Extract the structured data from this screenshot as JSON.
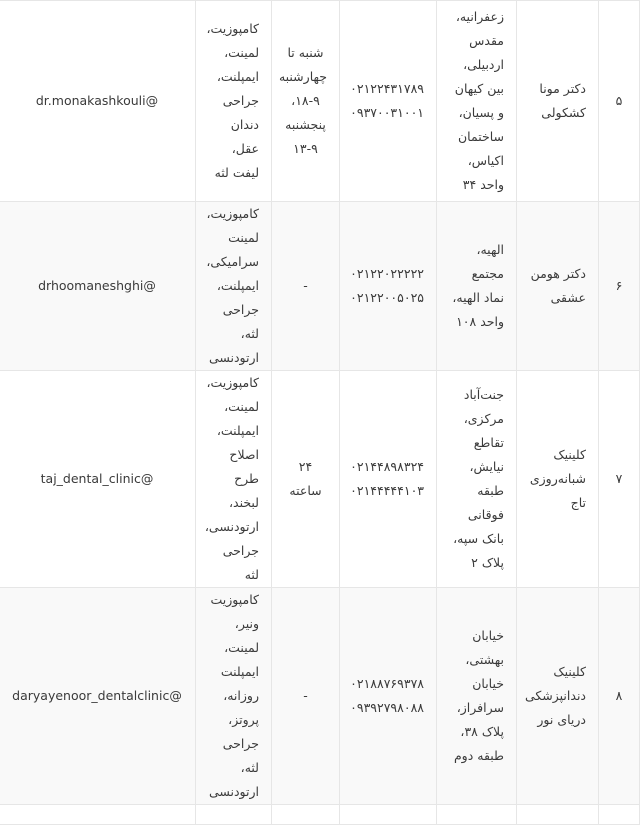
{
  "rows": [
    {
      "number": "۵",
      "name": "دکتر مونا کشکولی",
      "address": "زعفرانیه، مقدس اردبیلی، بین کیهان و پسیان، ساختمان اکیاس، واحد ۳۴",
      "phones": [
        "۰۲۱۲۲۴۳۱۷۸۹",
        "۰۹۳۷۰۰۳۱۰۰۱"
      ],
      "hours": "شنبه تا چهارشنبه ۹-۱۸، پنجشنبه ۹-۱۳",
      "services": "کامپوزیت، لمینت، ایمپلنت، جراحی دندان عقل، لیفت لثه",
      "instagram": "@dr.monakashkouli"
    },
    {
      "number": "۶",
      "name": "دکتر هومن عشقی",
      "address": "الهیه، مجتمع نماد الهیه، واحد ۱۰۸",
      "phones": [
        "۰۲۱۲۲۰۲۲۲۲۲",
        "۰۲۱۲۲۰۰۵۰۲۵"
      ],
      "hours": "-",
      "services": "کامپوزیت، لمینت سرامیکی، ایمپلنت، جراحی لثه، ارتودنسی",
      "instagram": "@drhoomaneshghi"
    },
    {
      "number": "۷",
      "name": "کلینیک شبانه‌روزی تاج",
      "address": "جنت‌آباد مرکزی، تقاطع نیایش، طبقه فوقانی بانک سپه، پلاک ۲",
      "phones": [
        "۰۲۱۴۴۸۹۸۳۲۴",
        "۰۲۱۴۴۴۴۴۱۰۳"
      ],
      "hours": "۲۴ ساعته",
      "services": "کامپوزیت، لمینت، ایمپلنت، اصلاح طرح لبخند، ارتودنسی، جراحی لثه",
      "instagram": "@taj_dental_clinic"
    },
    {
      "number": "۸",
      "name": "کلینیک دندانپزشکی دریای نور",
      "address": "خیابان بهشتی، خیابان سرافراز، پلاک ۳۸، طبقه دوم",
      "phones": [
        "۰۲۱۸۸۷۶۹۳۷۸",
        "۰۹۳۹۲۷۹۸۰۸۸"
      ],
      "hours": "-",
      "services": "کامپوزیت ونیر، لمینت، ایمپلنت روزانه، پروتز، جراحی لثه، ارتودنسی",
      "instagram": "@daryayenoor_dentalclinic"
    }
  ]
}
